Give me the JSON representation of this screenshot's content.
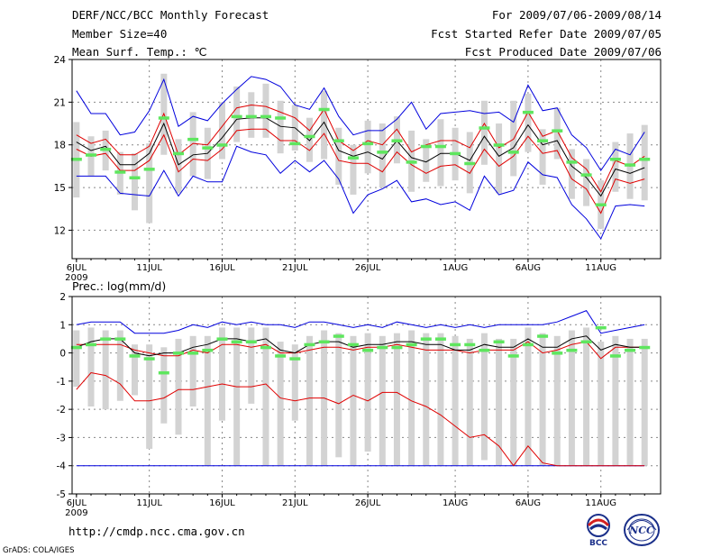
{
  "header": {
    "title": "DERF/NCC/BCC Monthly Forecast",
    "member_size": "Member Size=40",
    "variable": "Mean Surf. Temp.: ℃",
    "forecast_period": "For 2009/07/06-2009/08/14",
    "started_refer": "Fcst Started Refer Date 2009/07/05",
    "produced": "Fcst Produced Date 2009/07/06"
  },
  "footer": {
    "url": "http://cmdp.ncc.cma.gov.cn",
    "credit": "GrADS: COLA/IGES",
    "logo_bcc_text": "BCC",
    "logo_ncc_text": "NCC"
  },
  "colors": {
    "box": "#d3d3d3",
    "median": "#5ee65e",
    "mean": "#000000",
    "std": "#e00000",
    "envelope": "#0000dd",
    "grid": "#888888"
  },
  "chart_data": [
    {
      "type": "line",
      "title": "Mean Surf. Temp.: ℃",
      "ylim": [
        10,
        24
      ],
      "yticks": [
        12,
        15,
        18,
        21,
        24
      ],
      "xticks": [
        {
          "label": "6JUL",
          "sub": "2009",
          "day": 1
        },
        {
          "label": "11JUL",
          "day": 6
        },
        {
          "label": "16JUL",
          "day": 11
        },
        {
          "label": "21JUL",
          "day": 16
        },
        {
          "label": "26JUL",
          "day": 21
        },
        {
          "label": "1AUG",
          "day": 27
        },
        {
          "label": "6AUG",
          "day": 32
        },
        {
          "label": "11AUG",
          "day": 37
        }
      ],
      "x": [
        1,
        2,
        3,
        4,
        5,
        6,
        7,
        8,
        9,
        10,
        11,
        12,
        13,
        14,
        15,
        16,
        17,
        18,
        19,
        20,
        21,
        22,
        23,
        24,
        25,
        26,
        27,
        28,
        29,
        30,
        31,
        32,
        33,
        34,
        35,
        36,
        37,
        38,
        39,
        40
      ],
      "series": [
        {
          "name": "max",
          "values": [
            21.8,
            20.2,
            20.2,
            18.7,
            18.9,
            20.4,
            22.6,
            19.3,
            20.0,
            19.7,
            20.9,
            21.9,
            22.8,
            22.6,
            22.1,
            20.8,
            20.5,
            22.0,
            20.0,
            18.7,
            19.0,
            19.0,
            19.8,
            21.0,
            19.1,
            20.2,
            20.3,
            20.4,
            20.2,
            20.3,
            19.6,
            22.2,
            20.4,
            20.6,
            18.7,
            17.8,
            16.2,
            17.7,
            17.3,
            18.9
          ]
        },
        {
          "name": "mean_plus_sd",
          "values": [
            18.7,
            18.1,
            18.4,
            17.3,
            17.3,
            17.9,
            20.2,
            17.3,
            18.1,
            18.0,
            19.3,
            20.6,
            20.8,
            20.7,
            20.3,
            19.9,
            19.0,
            20.5,
            18.3,
            17.6,
            18.3,
            18.0,
            19.1,
            17.5,
            18.0,
            18.3,
            18.3,
            17.8,
            19.5,
            17.8,
            18.4,
            20.3,
            18.6,
            19.0,
            17.1,
            16.3,
            14.7,
            16.9,
            16.5,
            17.2
          ]
        },
        {
          "name": "mean",
          "values": [
            18.2,
            17.6,
            17.9,
            16.6,
            16.6,
            17.4,
            19.5,
            16.6,
            17.3,
            17.4,
            18.5,
            19.8,
            19.9,
            19.9,
            19.3,
            19.2,
            18.3,
            19.6,
            17.6,
            17.2,
            17.5,
            17.0,
            18.3,
            17.1,
            16.8,
            17.4,
            17.4,
            16.9,
            18.6,
            17.2,
            17.8,
            19.4,
            18.0,
            18.3,
            16.5,
            15.7,
            14.4,
            16.3,
            16.0,
            16.4
          ]
        },
        {
          "name": "mean_minus_sd",
          "values": [
            17.7,
            17.2,
            17.4,
            16.2,
            16.2,
            16.9,
            18.7,
            16.1,
            17.0,
            16.9,
            17.7,
            19.0,
            19.1,
            19.1,
            18.3,
            18.3,
            17.6,
            18.8,
            16.9,
            16.7,
            16.7,
            16.1,
            17.5,
            16.6,
            16.0,
            16.5,
            16.6,
            16.0,
            17.7,
            16.5,
            17.2,
            18.6,
            17.4,
            17.6,
            15.6,
            14.9,
            13.2,
            15.6,
            15.3,
            15.6
          ]
        },
        {
          "name": "min",
          "values": [
            15.8,
            15.8,
            15.8,
            14.6,
            14.5,
            14.4,
            16.2,
            14.4,
            15.8,
            15.4,
            15.4,
            17.9,
            17.5,
            17.3,
            16.0,
            16.9,
            16.1,
            16.9,
            15.6,
            13.2,
            14.5,
            14.9,
            15.5,
            14.0,
            14.2,
            13.8,
            14.0,
            13.4,
            15.8,
            14.5,
            14.8,
            16.8,
            15.9,
            15.7,
            13.8,
            12.8,
            11.4,
            13.7,
            13.8,
            13.7
          ]
        },
        {
          "name": "median",
          "values": [
            17.0,
            17.3,
            17.7,
            16.1,
            15.7,
            16.3,
            19.9,
            17.4,
            18.4,
            17.8,
            18.0,
            20.0,
            20.0,
            20.0,
            19.9,
            18.1,
            18.6,
            20.5,
            18.3,
            17.1,
            18.1,
            17.5,
            18.3,
            16.8,
            17.9,
            17.9,
            17.4,
            16.7,
            19.2,
            18.0,
            17.5,
            20.3,
            18.3,
            19.0,
            16.8,
            15.9,
            13.8,
            17.0,
            16.6,
            17.0
          ]
        },
        {
          "name": "box_high",
          "values": [
            19.6,
            18.6,
            19.0,
            17.5,
            17.4,
            18.1,
            23.0,
            18.4,
            20.3,
            19.2,
            21.0,
            22.1,
            21.7,
            22.3,
            21.1,
            20.8,
            19.9,
            21.8,
            19.2,
            18.0,
            19.7,
            19.5,
            20.0,
            19.0,
            18.4,
            19.8,
            19.2,
            18.9,
            21.1,
            19.5,
            21.1,
            21.6,
            19.1,
            20.6,
            17.7,
            17.0,
            15.5,
            18.2,
            18.8,
            19.4
          ]
        },
        {
          "name": "box_low",
          "values": [
            14.3,
            15.8,
            16.2,
            14.5,
            13.4,
            12.5,
            17.3,
            14.6,
            15.8,
            15.6,
            17.0,
            18.2,
            18.5,
            18.5,
            17.4,
            17.6,
            16.8,
            17.0,
            15.2,
            14.5,
            16.0,
            15.0,
            16.7,
            14.7,
            15.4,
            15.1,
            15.5,
            14.6,
            16.6,
            14.6,
            15.8,
            17.5,
            15.2,
            17.0,
            14.2,
            13.7,
            12.1,
            14.7,
            14.2,
            14.1
          ]
        }
      ]
    },
    {
      "type": "line",
      "title": "Prec.: log(mm/d)",
      "ylim": [
        -5,
        2
      ],
      "yticks": [
        -5,
        -4,
        -3,
        -2,
        -1,
        0,
        1,
        2
      ],
      "xticks": [
        {
          "label": "6JUL",
          "sub": "2009",
          "day": 1
        },
        {
          "label": "11JUL",
          "day": 6
        },
        {
          "label": "16JUL",
          "day": 11
        },
        {
          "label": "21JUL",
          "day": 16
        },
        {
          "label": "26JUL",
          "day": 21
        },
        {
          "label": "1AUG",
          "day": 27
        },
        {
          "label": "6AUG",
          "day": 32
        },
        {
          "label": "11AUG",
          "day": 37
        }
      ],
      "x": [
        1,
        2,
        3,
        4,
        5,
        6,
        7,
        8,
        9,
        10,
        11,
        12,
        13,
        14,
        15,
        16,
        17,
        18,
        19,
        20,
        21,
        22,
        23,
        24,
        25,
        26,
        27,
        28,
        29,
        30,
        31,
        32,
        33,
        34,
        35,
        36,
        37,
        38,
        39,
        40
      ],
      "series": [
        {
          "name": "max",
          "values": [
            1.0,
            1.1,
            1.1,
            1.1,
            0.7,
            0.7,
            0.7,
            0.8,
            1.0,
            0.9,
            1.1,
            1.0,
            1.1,
            1.0,
            1.0,
            0.9,
            1.1,
            1.1,
            1.0,
            0.9,
            1.0,
            0.9,
            1.1,
            1.0,
            0.9,
            1.0,
            0.9,
            1.0,
            0.9,
            1.0,
            1.0,
            1.0,
            1.0,
            1.1,
            1.3,
            1.5,
            0.7,
            0.8,
            0.9,
            1.0
          ]
        },
        {
          "name": "mean_plus_sd",
          "values": [
            0.3,
            0.3,
            0.3,
            0.3,
            0.1,
            0.0,
            -0.1,
            -0.1,
            0.1,
            0.0,
            0.3,
            0.3,
            0.2,
            0.3,
            0.0,
            0.0,
            0.1,
            0.2,
            0.2,
            0.1,
            0.2,
            0.2,
            0.3,
            0.2,
            0.1,
            0.1,
            0.1,
            0.0,
            0.1,
            0.1,
            0.1,
            0.4,
            0.0,
            0.1,
            0.3,
            0.4,
            -0.2,
            0.2,
            0.2,
            0.2
          ]
        },
        {
          "name": "mean",
          "values": [
            0.2,
            0.4,
            0.5,
            0.5,
            0.0,
            -0.1,
            0.0,
            0.0,
            0.2,
            0.3,
            0.5,
            0.5,
            0.4,
            0.5,
            0.1,
            0.0,
            0.3,
            0.4,
            0.4,
            0.2,
            0.3,
            0.3,
            0.4,
            0.4,
            0.3,
            0.3,
            0.1,
            0.1,
            0.3,
            0.2,
            0.2,
            0.5,
            0.2,
            0.2,
            0.5,
            0.6,
            0.1,
            0.3,
            0.2,
            0.2
          ]
        },
        {
          "name": "mean_minus_sd",
          "values": [
            -1.3,
            -0.7,
            -0.8,
            -1.1,
            -1.7,
            -1.7,
            -1.6,
            -1.3,
            -1.3,
            -1.2,
            -1.1,
            -1.2,
            -1.2,
            -1.1,
            -1.6,
            -1.7,
            -1.6,
            -1.6,
            -1.8,
            -1.5,
            -1.7,
            -1.4,
            -1.4,
            -1.7,
            -1.9,
            -2.2,
            -2.6,
            -3.0,
            -2.9,
            -3.3,
            -4.0,
            -3.3,
            -3.9,
            -4.0,
            -4.0,
            -4.0,
            -4.0,
            -4.0,
            -4.0,
            -4.0
          ]
        },
        {
          "name": "min",
          "values": [
            -4.0,
            -4.0,
            -4.0,
            -4.0,
            -4.0,
            -4.0,
            -4.0,
            -4.0,
            -4.0,
            -4.0,
            -4.0,
            -4.0,
            -4.0,
            -4.0,
            -4.0,
            -4.0,
            -4.0,
            -4.0,
            -4.0,
            -4.0,
            -4.0,
            -4.0,
            -4.0,
            -4.0,
            -4.0,
            -4.0,
            -4.0,
            -4.0,
            -4.0,
            -4.0,
            -4.0,
            -4.0,
            -4.0,
            -4.0,
            -4.0,
            -4.0,
            -4.0,
            -4.0,
            -4.0,
            -4.0
          ]
        },
        {
          "name": "median",
          "values": [
            0.2,
            0.3,
            0.5,
            0.5,
            -0.1,
            -0.2,
            -0.7,
            0.0,
            0.0,
            0.1,
            0.5,
            0.4,
            0.4,
            0.2,
            -0.1,
            -0.2,
            0.3,
            0.4,
            0.6,
            0.3,
            0.1,
            0.2,
            0.2,
            0.3,
            0.5,
            0.5,
            0.3,
            0.3,
            0.1,
            0.4,
            -0.1,
            0.3,
            0.6,
            0.0,
            0.1,
            0.4,
            0.9,
            -0.1,
            0.1,
            0.2
          ]
        },
        {
          "name": "box_high",
          "values": [
            0.8,
            0.9,
            0.8,
            0.8,
            0.3,
            0.3,
            0.2,
            0.5,
            0.6,
            0.6,
            0.9,
            0.9,
            0.9,
            0.9,
            0.4,
            0.3,
            0.6,
            0.8,
            0.7,
            0.6,
            0.7,
            0.6,
            0.7,
            0.8,
            0.7,
            0.7,
            0.6,
            0.5,
            0.7,
            0.5,
            0.5,
            0.9,
            0.7,
            0.6,
            0.8,
            0.9,
            0.4,
            0.6,
            0.5,
            0.5
          ]
        },
        {
          "name": "box_low",
          "values": [
            -1.2,
            -1.9,
            -2.0,
            -1.7,
            -1.5,
            -3.4,
            -2.5,
            -2.9,
            -1.9,
            -4.0,
            -2.4,
            -4.0,
            -1.8,
            -4.0,
            -4.0,
            -2.4,
            -4.0,
            -4.0,
            -3.7,
            -4.0,
            -3.5,
            -4.0,
            -4.0,
            -4.0,
            -4.0,
            -4.0,
            -4.0,
            -4.0,
            -3.8,
            -4.0,
            -4.0,
            -4.0,
            -4.0,
            -4.0,
            -4.0,
            -4.0,
            -4.0,
            -4.0,
            -4.0,
            -4.0
          ]
        }
      ]
    }
  ]
}
